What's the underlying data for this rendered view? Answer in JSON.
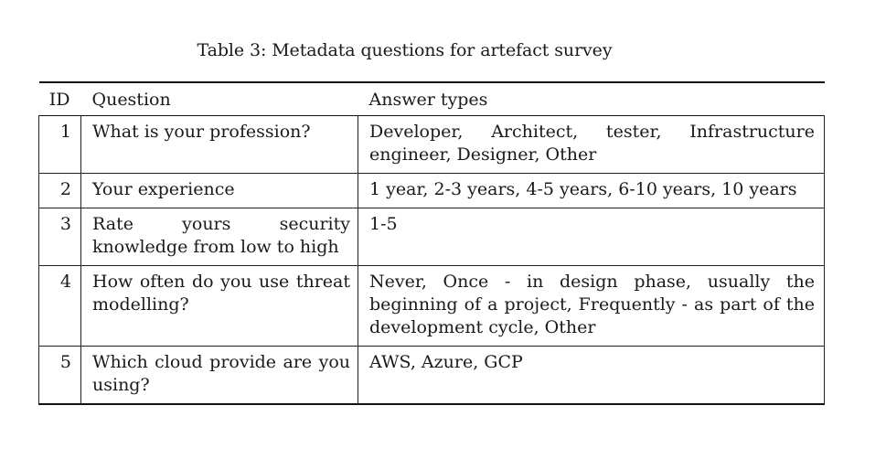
{
  "caption": "Table 3: Metadata questions for artefact survey",
  "table": {
    "headers": {
      "id": "ID",
      "question": "Question",
      "answer": "Answer types"
    },
    "rows": [
      {
        "id": "1",
        "question": "What is your profession?",
        "answer": "Developer, Architect, tester, Infrastructure engineer, Designer, Other"
      },
      {
        "id": "2",
        "question": "Your experience",
        "answer": "1 year, 2-3 years, 4-5 years, 6-10 years,  10 years"
      },
      {
        "id": "3",
        "question": "Rate yours security knowledge from low to high",
        "answer": "1-5"
      },
      {
        "id": "4",
        "question": "How often do you use threat modelling?",
        "answer": "Never, Once - in design phase, usually the beginning of a project, Frequently - as part of the development cycle, Other"
      },
      {
        "id": "5",
        "question": "Which cloud provide are you using?",
        "answer": "AWS, Azure, GCP"
      }
    ]
  }
}
